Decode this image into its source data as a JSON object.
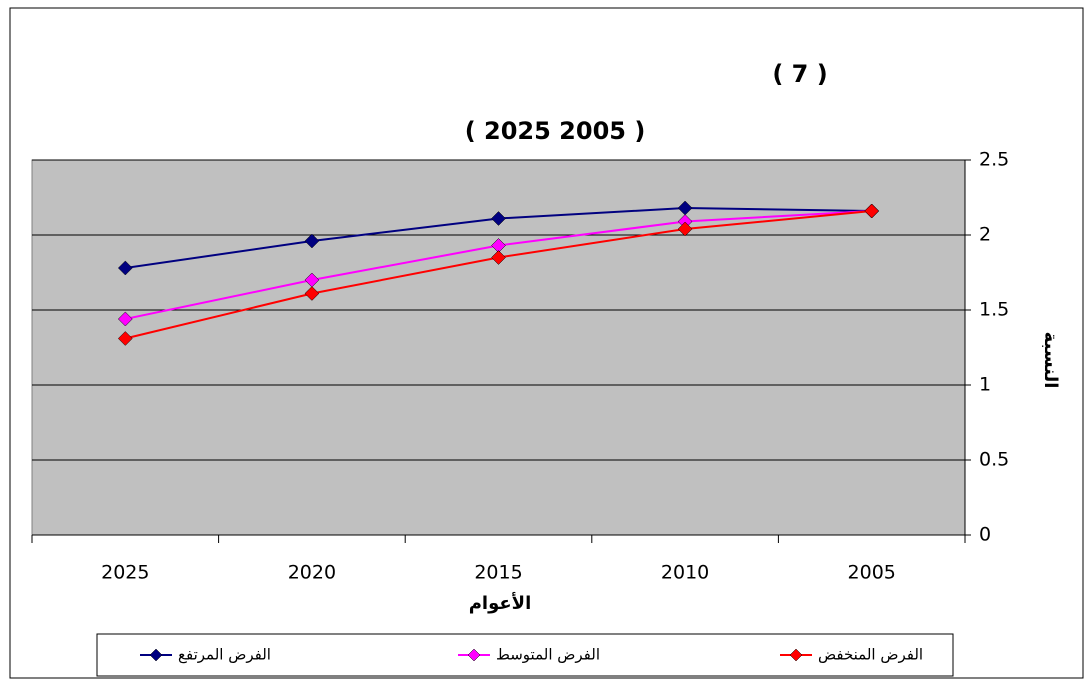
{
  "chart_data": {
    "type": "line",
    "title": "( 7 )",
    "subtitle": "( 2025   2005 )",
    "x_label": "الأعوام",
    "y_label": "النسبة",
    "categories": [
      "2025",
      "2020",
      "2015",
      "2010",
      "2005"
    ],
    "series": [
      {
        "name": "الفرض المرتفع",
        "color": "#000080",
        "values": [
          1.78,
          1.96,
          2.11,
          2.18,
          2.16
        ]
      },
      {
        "name": "الفرض المتوسط",
        "color": "#ff00ff",
        "values": [
          1.44,
          1.7,
          1.93,
          2.09,
          2.16
        ]
      },
      {
        "name": "الفرض المنخفض",
        "color": "#ff0000",
        "values": [
          1.31,
          1.61,
          1.85,
          2.04,
          2.16
        ]
      }
    ],
    "ylim": [
      0,
      2.5
    ],
    "yticks": [
      0,
      0.5,
      1,
      1.5,
      2,
      2.5
    ],
    "grid": true,
    "plot_background": "#c0c0c0"
  }
}
